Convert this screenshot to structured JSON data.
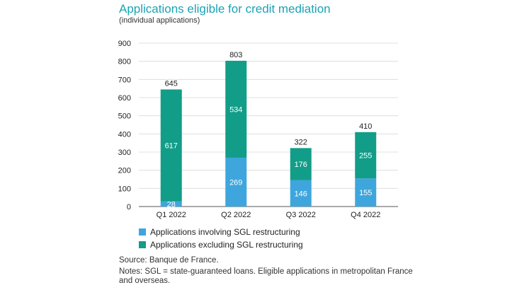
{
  "chart_data": {
    "type": "bar",
    "stacked": true,
    "title": "Applications eligible for credit mediation",
    "subtitle": "(individual applications)",
    "categories": [
      "Q1 2022",
      "Q2 2022",
      "Q3 2022",
      "Q4 2022"
    ],
    "series": [
      {
        "name": "Applications involving SGL restructuring",
        "values": [
          28,
          269,
          146,
          155
        ],
        "color": "#3ea6dd"
      },
      {
        "name": "Applications excluding SGL restructuring",
        "values": [
          617,
          534,
          176,
          255
        ],
        "color": "#129d88"
      }
    ],
    "totals": [
      645,
      803,
      322,
      410
    ],
    "ylim": [
      0,
      900
    ],
    "yticks": [
      0,
      100,
      200,
      300,
      400,
      500,
      600,
      700,
      800,
      900
    ],
    "xlabel": "",
    "ylabel": "",
    "grid": true,
    "legend_position": "bottom-left"
  },
  "source": "Source: Banque de France.",
  "notes": "Notes: SGL = state-guaranteed loans. Eligible applications in metropolitan France and overseas."
}
